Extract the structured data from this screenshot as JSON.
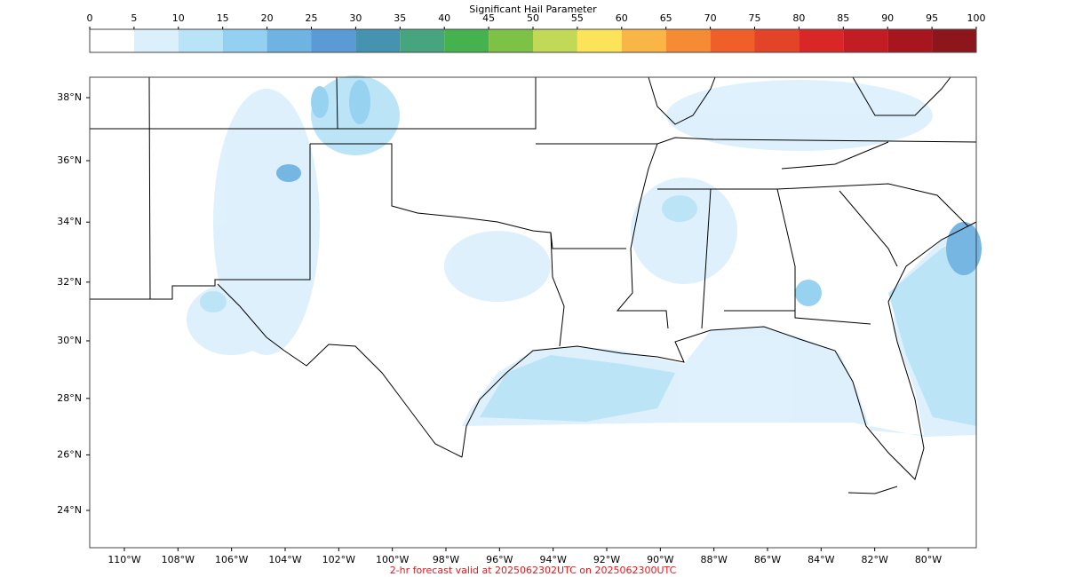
{
  "title": "Significant Hail Parameter",
  "colorbar": {
    "ticks": [
      0,
      5,
      10,
      15,
      20,
      25,
      30,
      35,
      40,
      45,
      50,
      55,
      60,
      65,
      70,
      75,
      80,
      85,
      90,
      95,
      100
    ],
    "colors": [
      "#ffffff",
      "#dcf0fc",
      "#b9e3f7",
      "#93d0f1",
      "#6eb3e2",
      "#5b9bd5",
      "#4593b0",
      "#46a57e",
      "#46b24f",
      "#7ec147",
      "#c2d957",
      "#fbe45a",
      "#f9b647",
      "#f68b35",
      "#f05f2a",
      "#e34427",
      "#d92728",
      "#c21c25",
      "#a7161f",
      "#8d151c"
    ]
  },
  "map": {
    "latitude_ticks": [
      {
        "value": 38,
        "label": "38°N"
      },
      {
        "value": 36,
        "label": "36°N"
      },
      {
        "value": 34,
        "label": "34°N"
      },
      {
        "value": 32,
        "label": "32°N"
      },
      {
        "value": 30,
        "label": "30°N"
      },
      {
        "value": 28,
        "label": "28°N"
      },
      {
        "value": 26,
        "label": "26°N"
      },
      {
        "value": 24,
        "label": "24°N"
      }
    ],
    "longitude_ticks": [
      {
        "value": -110,
        "label": "110°W"
      },
      {
        "value": -108,
        "label": "108°W"
      },
      {
        "value": -106,
        "label": "106°W"
      },
      {
        "value": -104,
        "label": "104°W"
      },
      {
        "value": -102,
        "label": "102°W"
      },
      {
        "value": -100,
        "label": "100°W"
      },
      {
        "value": -98,
        "label": "98°W"
      },
      {
        "value": -96,
        "label": "96°W"
      },
      {
        "value": -94,
        "label": "94°W"
      },
      {
        "value": -92,
        "label": "92°W"
      },
      {
        "value": -90,
        "label": "90°W"
      },
      {
        "value": -88,
        "label": "88°W"
      },
      {
        "value": -86,
        "label": "86°W"
      },
      {
        "value": -84,
        "label": "84°W"
      },
      {
        "value": -82,
        "label": "82°W"
      },
      {
        "value": -80,
        "label": "80°W"
      }
    ]
  },
  "footer": "2-hr forecast valid at 2025062302UTC on 2025062300UTC"
}
